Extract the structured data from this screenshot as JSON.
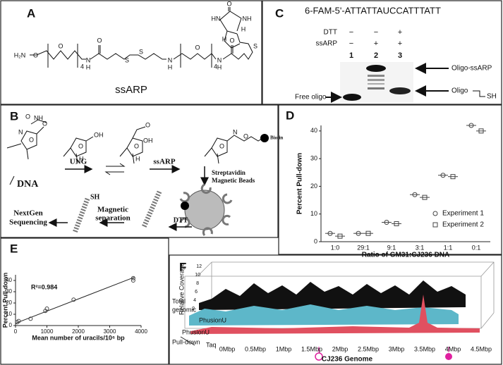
{
  "panels": {
    "A": {
      "label": "A",
      "name": "ssARP",
      "atoms": [
        "H₂N",
        "O",
        "O",
        "4",
        "N",
        "H",
        "O",
        "S",
        "S",
        "N",
        "H",
        "O",
        "4",
        "N",
        "H",
        "O",
        "HN",
        "NH",
        "O",
        "S",
        "H",
        "H"
      ]
    },
    "B": {
      "label": "B",
      "dna": "DNA",
      "enzyme": "UNG",
      "reagent": "ssARP",
      "biotin": "Biotin",
      "beads": [
        "Streptavidin",
        "Magnetic Beads"
      ],
      "reduce": "DTT",
      "separation": [
        "Magnetic",
        "separation"
      ],
      "sequencing": [
        "NextGen",
        "Sequencing"
      ],
      "thiol": "SH",
      "chem": [
        "O",
        "NH",
        "O",
        "N",
        "O",
        "OH",
        "O",
        "OH",
        "O",
        "O",
        "O",
        "N",
        "O",
        "H",
        "H"
      ]
    },
    "C": {
      "label": "C",
      "sequence": "6-FAM-5'-ATTATTAUCCATTTATT",
      "rows": [
        "DTT",
        "ssARP"
      ],
      "dtt": [
        "−",
        "−",
        "+"
      ],
      "ssarp": [
        "−",
        "+",
        "+"
      ],
      "lanes": [
        "1",
        "2",
        "3"
      ],
      "bands": [
        "Oligo-ssARP",
        "Oligo",
        "SH",
        "Free oligo"
      ]
    },
    "D": {
      "label": "D"
    },
    "E": {
      "label": "E"
    },
    "F": {
      "label": "F",
      "y_label": "Relative Coverage",
      "y_ticks": [
        "2",
        "4",
        "6",
        "8",
        "10",
        "12"
      ],
      "rows": [
        "Total",
        "genomic",
        "PhusionU",
        "PhusionU",
        "Pull-down",
        "Taq"
      ],
      "x_ticks": [
        "0Mbp",
        "0.5Mbp",
        "1Mbp",
        "1.5Mbp",
        "2Mbp",
        "2.5Mbp",
        "3Mbp",
        "3.5Mbp",
        "4Mbp",
        "4.5Mbp"
      ],
      "x_label": "CJ236 Genome"
    }
  },
  "chart_data": [
    {
      "type": "scatter",
      "x_label": "Ratio of GM31:CJ236 DNA",
      "y_label": "Percent Pull-down",
      "categories": [
        "1:0",
        "29:1",
        "9:1",
        "3:1",
        "1:1",
        "0:1"
      ],
      "series": [
        {
          "name": "Experiment 1",
          "marker": "circle",
          "color": "#444444",
          "values": [
            3,
            3,
            7,
            17,
            24,
            42
          ]
        },
        {
          "name": "Experiment 2",
          "marker": "square",
          "color": "#444444",
          "values": [
            2,
            3,
            6.5,
            16,
            23.5,
            40
          ]
        }
      ],
      "ylim": [
        0,
        42
      ],
      "yticks": [
        0,
        10,
        20,
        30,
        40
      ],
      "legend": "lower right"
    },
    {
      "type": "scatter",
      "x_label": "Mean number of uracils/10⁶ bp",
      "y_label": "Percent Pull-down",
      "annotation": "R²=0.984",
      "x": [
        50,
        100,
        480,
        950,
        1000,
        1850,
        3750,
        3750
      ],
      "values": [
        3,
        4,
        6,
        13,
        15,
        23,
        42,
        40
      ],
      "color": "#444444",
      "fit": {
        "x": [
          0,
          3800
        ],
        "y": [
          2,
          43
        ]
      },
      "xlim": [
        0,
        4000
      ],
      "ylim": [
        0,
        45
      ],
      "xticks": [
        0,
        1000,
        2000,
        3000,
        4000
      ],
      "yticks": [
        0,
        10,
        20,
        30,
        40
      ]
    }
  ]
}
